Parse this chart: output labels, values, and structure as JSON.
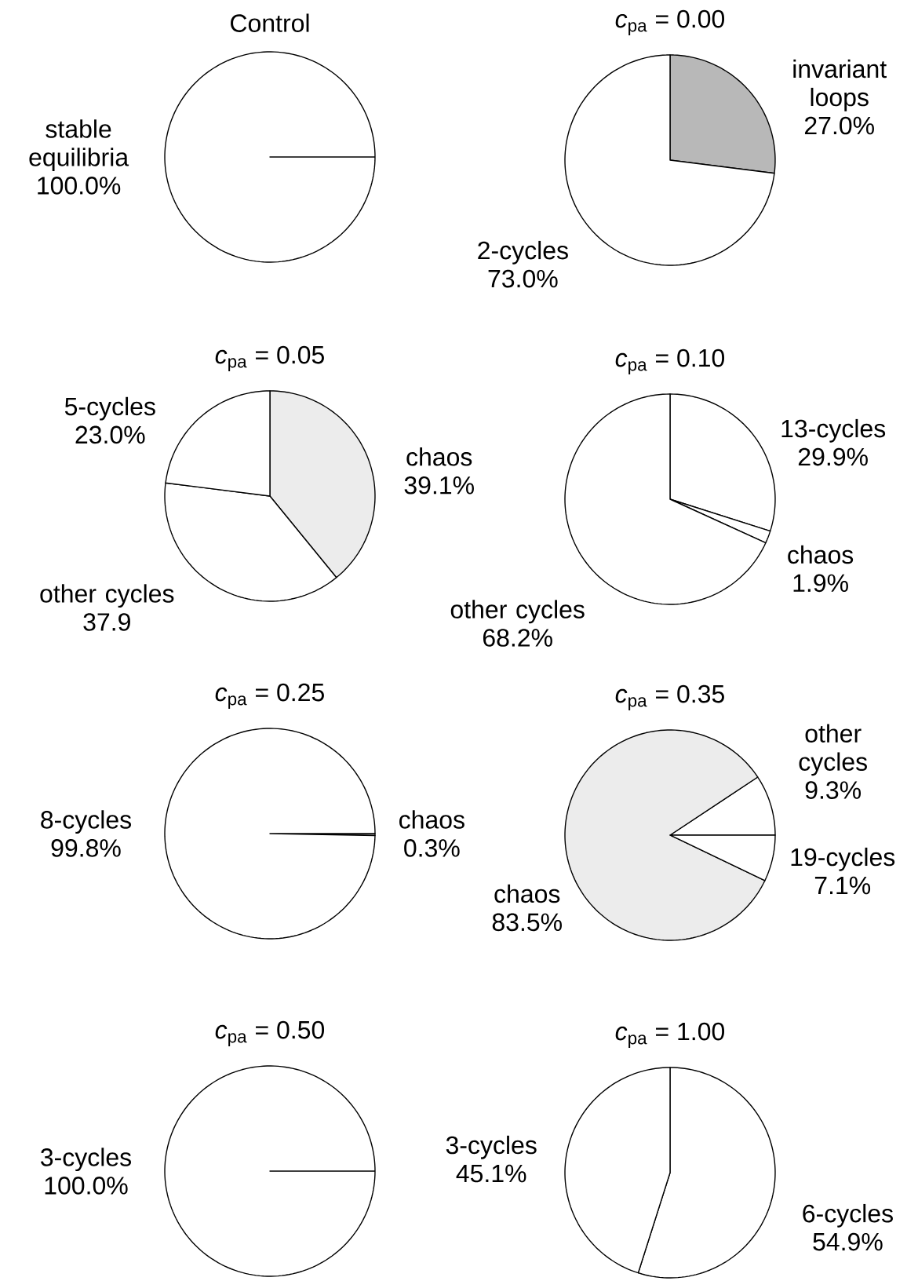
{
  "chart_data": [
    {
      "type": "pie",
      "title": "Control",
      "categories": [
        "stable equilibria"
      ],
      "values": [
        100.0
      ],
      "value_labels": [
        "100.0%"
      ],
      "colors": [
        "#ffffff"
      ]
    },
    {
      "type": "pie",
      "title": "*c*$_{pa}$ = 0.00",
      "categories": [
        "invariant loops",
        "2-cycles"
      ],
      "values": [
        27.0,
        73.0
      ],
      "value_labels": [
        "27.0%",
        "73.0%"
      ],
      "colors": [
        "#b8b8b8",
        "#ffffff"
      ]
    },
    {
      "type": "pie",
      "title": "*c*$_{pa}$ = 0.05",
      "categories": [
        "chaos",
        "other cycles",
        "5-cycles"
      ],
      "values": [
        39.1,
        37.9,
        23.0
      ],
      "value_labels": [
        "39.1%",
        "37.9",
        "23.0%"
      ],
      "colors": [
        "#ececec",
        "#ffffff",
        "#ffffff"
      ]
    },
    {
      "type": "pie",
      "title": "*c*$_{pa}$ = 0.10",
      "categories": [
        "13-cycles",
        "chaos",
        "other cycles"
      ],
      "values": [
        29.9,
        1.9,
        68.2
      ],
      "value_labels": [
        "29.9%",
        "1.9%",
        "68.2%"
      ],
      "colors": [
        "#ffffff",
        "#ffffff",
        "#ffffff"
      ]
    },
    {
      "type": "pie",
      "title": "*c*$_{pa}$ = 0.25",
      "categories": [
        "chaos",
        "8-cycles"
      ],
      "values": [
        0.3,
        99.8
      ],
      "value_labels": [
        "0.3%",
        "99.8%"
      ],
      "colors": [
        "#ffffff",
        "#ffffff"
      ]
    },
    {
      "type": "pie",
      "title": "*c*$_{pa}$ = 0.35",
      "categories": [
        "other cycles",
        "chaos",
        "19-cycles"
      ],
      "values": [
        9.3,
        83.5,
        7.1
      ],
      "value_labels": [
        "9.3%",
        "83.5%",
        "7.1%"
      ],
      "colors": [
        "#ffffff",
        "#ececec",
        "#ffffff"
      ]
    },
    {
      "type": "pie",
      "title": "*c*$_{pa}$ = 0.50",
      "categories": [
        "3-cycles"
      ],
      "values": [
        100.0
      ],
      "value_labels": [
        "100.0%"
      ],
      "colors": [
        "#ffffff"
      ]
    },
    {
      "type": "pie",
      "title": "*c*$_{pa}$ = 1.00",
      "categories": [
        "6-cycles",
        "3-cycles"
      ],
      "values": [
        54.9,
        45.1
      ],
      "value_labels": [
        "54.9%",
        "45.1%"
      ],
      "colors": [
        "#ffffff",
        "#ffffff"
      ]
    }
  ]
}
